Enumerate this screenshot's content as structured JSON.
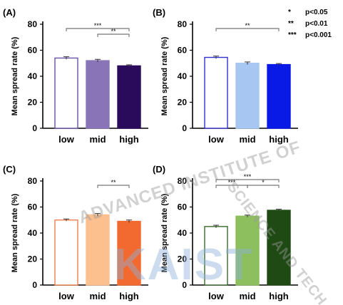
{
  "legend": {
    "entries": [
      {
        "symbol": "*",
        "label": "p<0.05"
      },
      {
        "symbol": "**",
        "label": "p<0.01"
      },
      {
        "symbol": "***",
        "label": "p<0.001"
      }
    ]
  },
  "watermark": {
    "main": "KAIST",
    "arc_left": "ADVANCED INSTITUTE OF",
    "arc_right": "SCIENCE AND TECH"
  },
  "chart_data": [
    {
      "type": "bar",
      "panel_label": "(A)",
      "ylabel": "Mean spread rate (%)",
      "ylim": [
        0,
        80
      ],
      "yticks": [
        0,
        20,
        40,
        60,
        80
      ],
      "categories": [
        "low",
        "mid",
        "high"
      ],
      "values": [
        54,
        52,
        48
      ],
      "errors": [
        1,
        1,
        0.8
      ],
      "bar_colors": [
        "#ffffff",
        "#8a74b8",
        "#2a0a5a"
      ],
      "edge_colors": [
        "#6a50a8",
        "#8a74b8",
        "#2a0a5a"
      ],
      "significance": [
        {
          "from": 0,
          "to": 2,
          "label": "***",
          "level": 1
        },
        {
          "from": 1,
          "to": 2,
          "label": "**",
          "level": 0
        }
      ]
    },
    {
      "type": "bar",
      "panel_label": "(B)",
      "ylabel": "Mean spread rate (%)",
      "ylim": [
        0,
        80
      ],
      "yticks": [
        0,
        20,
        40,
        60,
        80
      ],
      "categories": [
        "low",
        "mid",
        "high"
      ],
      "values": [
        54.5,
        50,
        49
      ],
      "errors": [
        1,
        1,
        0.8
      ],
      "bar_colors": [
        "#ffffff",
        "#a8c6f2",
        "#0a1ae6"
      ],
      "edge_colors": [
        "#3030d0",
        "#a8c6f2",
        "#0a1ae6"
      ],
      "significance": [
        {
          "from": 0,
          "to": 2,
          "label": "**",
          "level": 1
        }
      ]
    },
    {
      "type": "bar",
      "panel_label": "(C)",
      "ylabel": "Mean spread rate (%)",
      "ylim": [
        0,
        80
      ],
      "yticks": [
        0,
        20,
        40,
        60,
        80
      ],
      "categories": [
        "low",
        "mid",
        "high"
      ],
      "values": [
        50,
        54,
        49
      ],
      "errors": [
        0.8,
        1,
        1
      ],
      "bar_colors": [
        "#ffffff",
        "#fbc08e",
        "#f26a30"
      ],
      "edge_colors": [
        "#f08050",
        "#fbc08e",
        "#f26a30"
      ],
      "significance": [
        {
          "from": 1,
          "to": 2,
          "label": "**",
          "level": 1
        }
      ]
    },
    {
      "type": "bar",
      "panel_label": "(D)",
      "ylabel": "Mean spread rate (%)",
      "ylim": [
        0,
        80
      ],
      "yticks": [
        0,
        20,
        40,
        60,
        80
      ],
      "categories": [
        "low",
        "mid",
        "high"
      ],
      "values": [
        45,
        53,
        57.5
      ],
      "errors": [
        1,
        0.8,
        0.8
      ],
      "bar_colors": [
        "#ffffff",
        "#8dbf5e",
        "#1f4a14"
      ],
      "edge_colors": [
        "#3a6a28",
        "#8dbf5e",
        "#1f4a14"
      ],
      "significance": [
        {
          "from": 0,
          "to": 2,
          "label": "***",
          "level": 2
        },
        {
          "from": 0,
          "to": 1,
          "label": "***",
          "level": 1
        },
        {
          "from": 1,
          "to": 2,
          "label": "*",
          "level": 1
        }
      ]
    }
  ]
}
